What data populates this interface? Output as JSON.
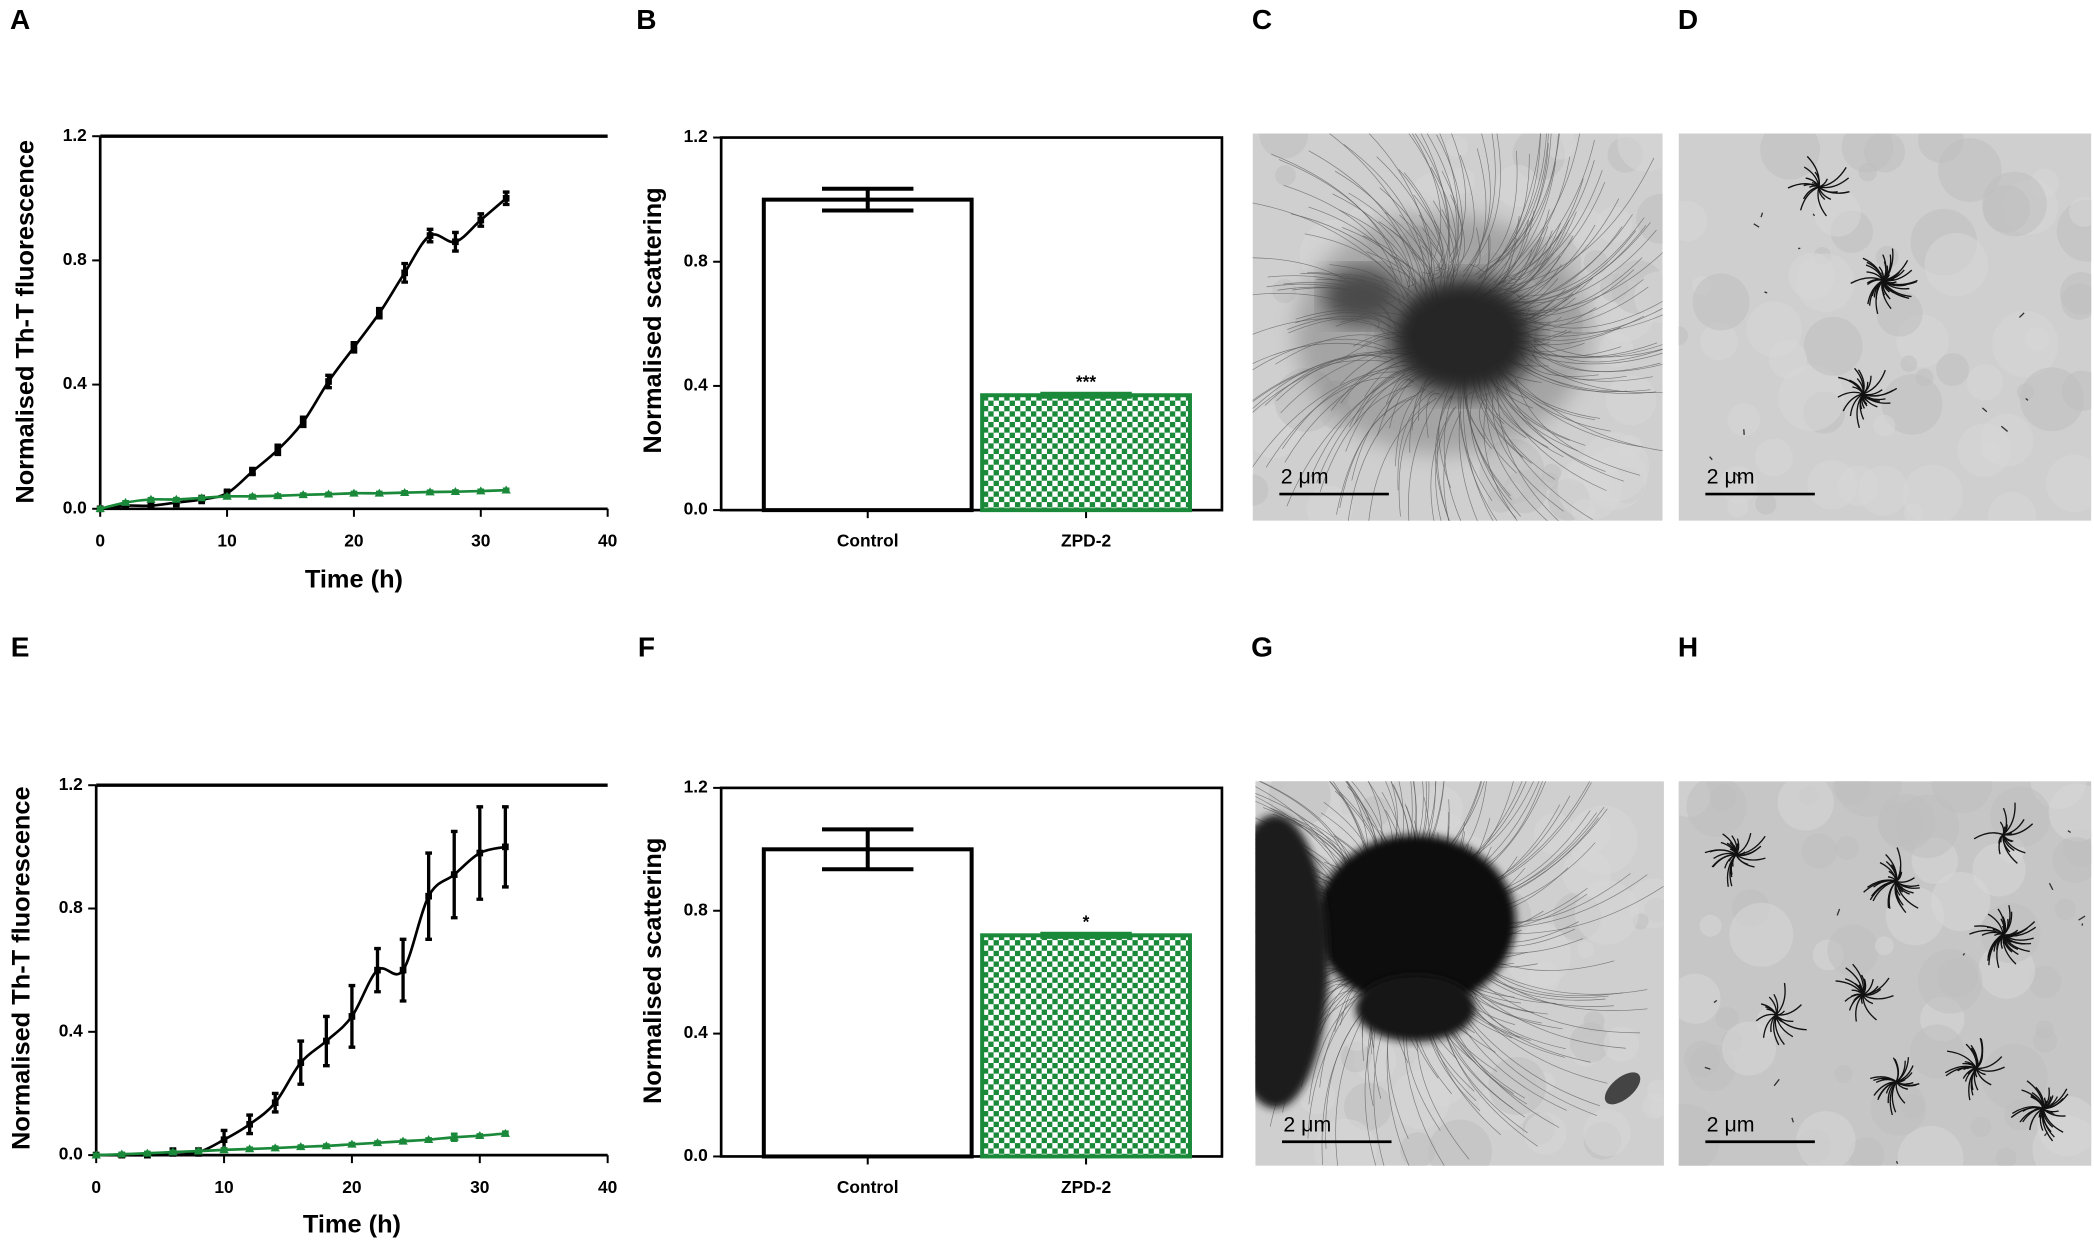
{
  "chart_data": [
    {
      "type": "line",
      "panel": "A",
      "xlabel": "Time (h)",
      "ylabel": "Normalised Th-T fluorescence",
      "x": [
        0,
        2,
        4,
        6,
        8,
        10,
        12,
        14,
        16,
        18,
        20,
        22,
        24,
        26,
        28,
        30,
        32
      ],
      "series": [
        {
          "color": "#000000",
          "marker": "square",
          "values": [
            0,
            0.01,
            0.01,
            0.02,
            0.03,
            0.05,
            0.12,
            0.19,
            0.28,
            0.41,
            0.52,
            0.63,
            0.76,
            0.88,
            0.86,
            0.93,
            1.0
          ],
          "errors": [
            0.005,
            0.005,
            0.005,
            0.01,
            0.01,
            0.01,
            0.01,
            0.015,
            0.015,
            0.02,
            0.015,
            0.015,
            0.03,
            0.02,
            0.03,
            0.02,
            0.02
          ]
        },
        {
          "color": "#1a8a3a",
          "marker": "triangle",
          "values": [
            0,
            0.02,
            0.03,
            0.03,
            0.035,
            0.04,
            0.04,
            0.042,
            0.045,
            0.047,
            0.05,
            0.05,
            0.052,
            0.054,
            0.055,
            0.057,
            0.06
          ],
          "errors": [
            0.003,
            0.003,
            0.003,
            0.003,
            0.003,
            0.003,
            0.003,
            0.003,
            0.003,
            0.003,
            0.003,
            0.003,
            0.003,
            0.003,
            0.003,
            0.003,
            0.003
          ]
        }
      ],
      "xlim": [
        0,
        40
      ],
      "xticks": [
        0,
        10,
        20,
        30,
        40
      ],
      "ylim": [
        0,
        1.2
      ],
      "yticks": [
        {
          "value": 0,
          "label": "0.0"
        },
        0.4,
        0.8,
        1.2
      ]
    },
    {
      "type": "bar",
      "panel": "B",
      "ylabel": "Normalised scattering",
      "categories": [
        "Control",
        "ZPD-2"
      ],
      "values": [
        1.0,
        0.37
      ],
      "errors": [
        0.035,
        0.005
      ],
      "colors": [
        "#ffffff",
        "#1a8a3a"
      ],
      "hatch": [
        false,
        true
      ],
      "significance": [
        null,
        "***"
      ],
      "ylim": [
        0,
        1.2
      ],
      "yticks": [
        {
          "value": 0,
          "label": "0.0"
        },
        0.4,
        0.8,
        1.2
      ]
    },
    {
      "type": "line",
      "panel": "E",
      "xlabel": "Time (h)",
      "ylabel": "Normalised Th-T fluorescence",
      "x": [
        0,
        2,
        4,
        6,
        8,
        10,
        12,
        14,
        16,
        18,
        20,
        22,
        24,
        26,
        28,
        30,
        32
      ],
      "series": [
        {
          "color": "#000000",
          "marker": "square",
          "values": [
            0,
            0,
            0,
            0.01,
            0.01,
            0.05,
            0.1,
            0.17,
            0.3,
            0.37,
            0.45,
            0.6,
            0.6,
            0.84,
            0.91,
            0.98,
            1.0
          ],
          "errors": [
            0.005,
            0.005,
            0.005,
            0.01,
            0.01,
            0.03,
            0.03,
            0.03,
            0.07,
            0.08,
            0.1,
            0.07,
            0.1,
            0.14,
            0.14,
            0.15,
            0.13
          ]
        },
        {
          "color": "#1a8a3a",
          "marker": "triangle",
          "values": [
            0,
            0.003,
            0.006,
            0.01,
            0.013,
            0.017,
            0.02,
            0.023,
            0.027,
            0.03,
            0.035,
            0.04,
            0.045,
            0.05,
            0.058,
            0.063,
            0.07
          ],
          "errors": [
            0.003,
            0.003,
            0.003,
            0.003,
            0.003,
            0.003,
            0.003,
            0.003,
            0.003,
            0.003,
            0.003,
            0.003,
            0.003,
            0.003,
            0.01,
            0.003,
            0.005
          ]
        }
      ],
      "xlim": [
        0,
        40
      ],
      "xticks": [
        0,
        10,
        20,
        30,
        40
      ],
      "ylim": [
        0,
        1.2
      ],
      "yticks": [
        {
          "value": 0,
          "label": "0.0"
        },
        0.4,
        0.8,
        1.2
      ]
    },
    {
      "type": "bar",
      "panel": "F",
      "ylabel": "Normalised scattering",
      "categories": [
        "Control",
        "ZPD-2"
      ],
      "values": [
        1.0,
        0.72
      ],
      "errors": [
        0.065,
        0.005
      ],
      "colors": [
        "#ffffff",
        "#1a8a3a"
      ],
      "hatch": [
        false,
        true
      ],
      "significance": [
        null,
        "*"
      ],
      "ylim": [
        0,
        1.2
      ],
      "yticks": [
        {
          "value": 0,
          "label": "0.0"
        },
        0.4,
        0.8,
        1.2
      ]
    }
  ],
  "micrographs": [
    {
      "panel": "C",
      "scale_bar": "2  μm"
    },
    {
      "panel": "D",
      "scale_bar": "2  μm"
    },
    {
      "panel": "G",
      "scale_bar": "2  μm"
    },
    {
      "panel": "H",
      "scale_bar": "2  μm"
    }
  ]
}
